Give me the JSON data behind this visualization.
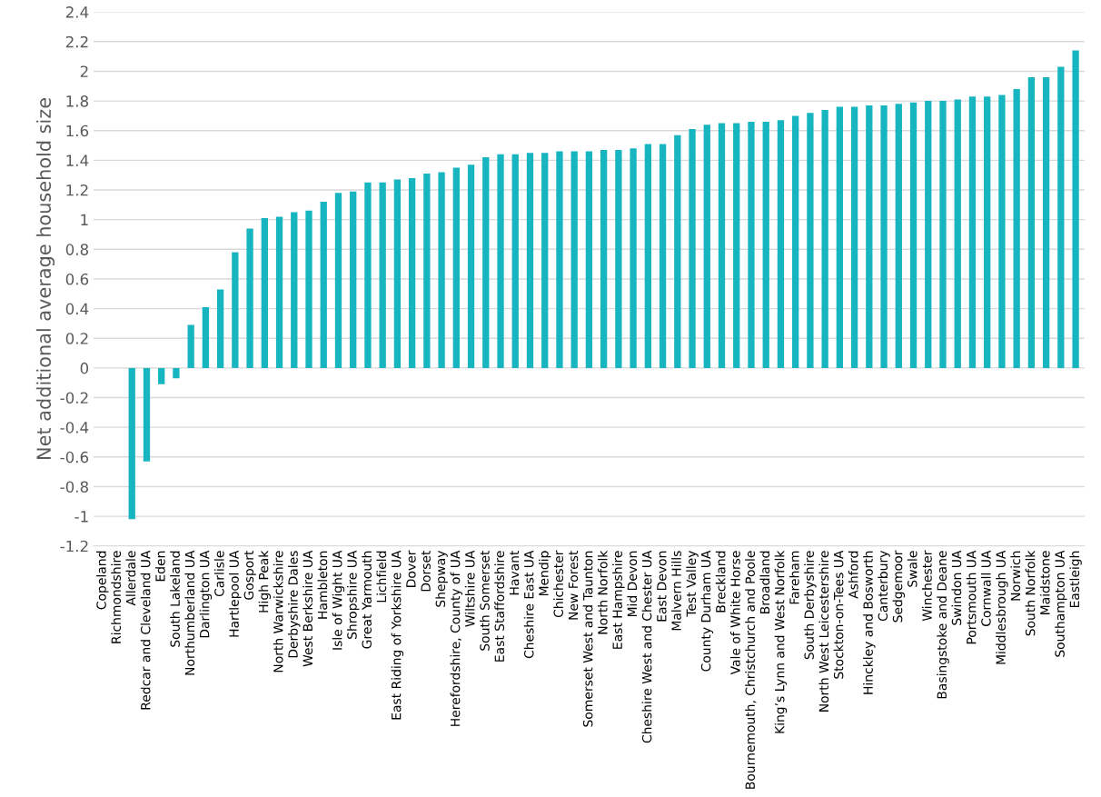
{
  "chart_data": {
    "type": "bar",
    "ylabel": "Net additional average household size",
    "color": "#17b5c0",
    "categories": [
      "Copeland",
      "Richmondshire",
      "Allerdale",
      "Redcar and Cleveland UA",
      "Eden",
      "South Lakeland",
      "Northumberland UA",
      "Darlington UA",
      "Carlisle",
      "Hartlepool UA",
      "Gosport",
      "High Peak",
      "North Warwickshire",
      "Derbyshire Dales",
      "West Berkshire UA",
      "Hambleton",
      "Isle of Wight UA",
      "Shropshire UA",
      "Great Yarmouth",
      "Lichfield",
      "East Riding of Yorkshire UA",
      "Dover",
      "Dorset",
      "Shepway",
      "Herefordshire, County of UA",
      "Wiltshire UA",
      "South Somerset",
      "East Staffordshire",
      "Havant",
      "Cheshire East UA",
      "Mendip",
      "Chichester",
      "New Forest",
      "Somerset West and Taunton",
      "North Norfolk",
      "East Hampshire",
      "Mid Devon",
      "Cheshire West and Chester UA",
      "East Devon",
      "Malvern Hills",
      "Test Valley",
      "County Durham UA",
      "Breckland",
      "Vale of White Horse",
      "Bournemouth, Christchurch and Poole",
      "Broadland",
      "King’s Lynn and West Norfolk",
      "Fareham",
      "South Derbyshire",
      "North West Leicestershire",
      "Stockton-on-Tees UA",
      "Ashford",
      "Hinckley and Bosworth",
      "Canterbury",
      "Sedgemoor",
      "Swale",
      "Winchester",
      "Basingstoke and Deane",
      "Swindon UA",
      "Portsmouth UA",
      "Cornwall UA",
      "Middlesbrough UA",
      "Norwich",
      "South Norfolk",
      "Maidstone",
      "Southampton UA",
      "Eastleigh"
    ],
    "values": [
      0,
      0,
      -1.02,
      -0.63,
      -0.11,
      -0.07,
      0.29,
      0.41,
      0.53,
      0.78,
      0.94,
      1.01,
      1.02,
      1.05,
      1.06,
      1.12,
      1.18,
      1.19,
      1.25,
      1.25,
      1.27,
      1.28,
      1.31,
      1.32,
      1.35,
      1.37,
      1.42,
      1.44,
      1.44,
      1.45,
      1.45,
      1.46,
      1.46,
      1.46,
      1.47,
      1.47,
      1.48,
      1.51,
      1.51,
      1.57,
      1.61,
      1.64,
      1.65,
      1.65,
      1.66,
      1.66,
      1.67,
      1.7,
      1.72,
      1.74,
      1.76,
      1.76,
      1.77,
      1.77,
      1.78,
      1.79,
      1.8,
      1.8,
      1.81,
      1.83,
      1.83,
      1.84,
      1.88,
      1.96,
      1.96,
      2.03,
      2.14
    ],
    "ylim": [
      -1.2,
      2.4
    ],
    "yticks": [
      -1.2,
      -1,
      -0.8,
      -0.6,
      -0.4,
      -0.2,
      0,
      0.2,
      0.4,
      0.6,
      0.8,
      1,
      1.2,
      1.4,
      1.6,
      1.8,
      2,
      2.2,
      2.4
    ],
    "grid": "y"
  }
}
